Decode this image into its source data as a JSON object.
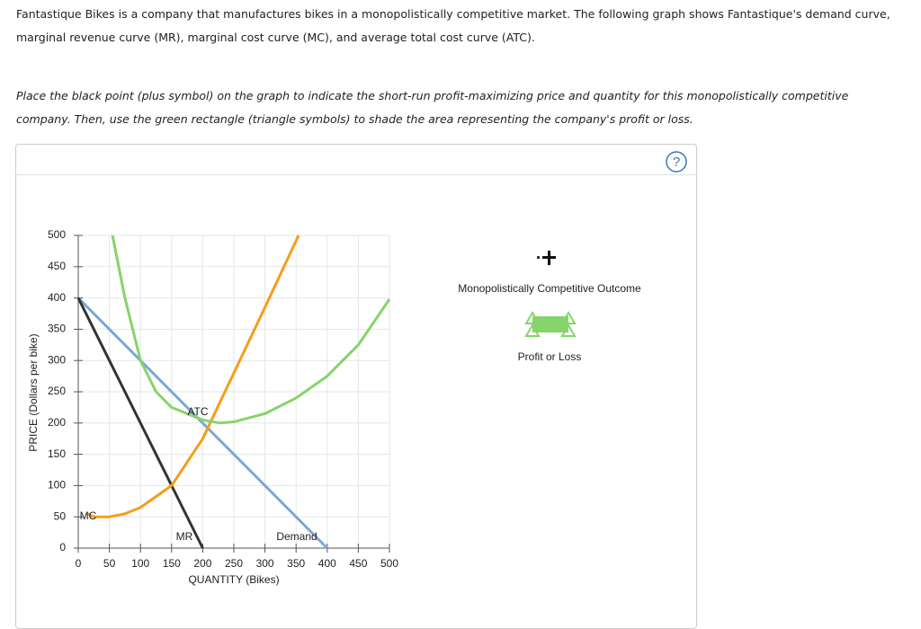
{
  "question": {
    "intro": "Fantastique Bikes is a company that manufactures bikes in a monopolistically competitive market. The following graph shows Fantastique's demand curve, marginal revenue curve (MR), marginal cost curve (MC), and average total cost curve (ATC).",
    "instruction": "Place the black point (plus symbol) on the graph to indicate the short-run profit-maximizing price and quantity for this monopolistically competitive company. Then, use the green rectangle (triangle symbols) to shade the area representing the company's profit or loss."
  },
  "help": "?",
  "tools": [
    "Monopolistically Competitive Outcome",
    "Profit or Loss"
  ],
  "chart_data": {
    "type": "line",
    "x_label": "QUANTITY (Bikes)",
    "y_label": "PRICE (Dollars per bike)",
    "xlim": [
      0,
      500
    ],
    "ylim": [
      0,
      500
    ],
    "xticks": [
      0,
      50,
      100,
      150,
      200,
      250,
      300,
      350,
      400,
      450,
      500
    ],
    "yticks": [
      0,
      50,
      100,
      150,
      200,
      250,
      300,
      350,
      400,
      450,
      500
    ],
    "grid": true,
    "series": [
      {
        "name": "Demand",
        "color": "#7ba7d7",
        "x": [
          0,
          400
        ],
        "values": [
          400,
          0
        ]
      },
      {
        "name": "MR",
        "color": "#333333",
        "x": [
          0,
          200
        ],
        "values": [
          400,
          0
        ]
      },
      {
        "name": "MC",
        "color": "#f59d1a",
        "x": [
          15,
          25,
          50,
          75,
          100,
          150,
          200,
          250,
          300,
          354
        ],
        "values": [
          55,
          50,
          50,
          55,
          65,
          100,
          175,
          280,
          385,
          500
        ]
      },
      {
        "name": "ATC",
        "color": "#86d46a",
        "x": [
          55,
          75,
          100,
          125,
          150,
          200,
          228,
          250,
          300,
          350,
          400,
          450,
          500
        ],
        "values": [
          500,
          400,
          300,
          250,
          225,
          205,
          200,
          202,
          215,
          240,
          275,
          325,
          398
        ]
      }
    ]
  }
}
